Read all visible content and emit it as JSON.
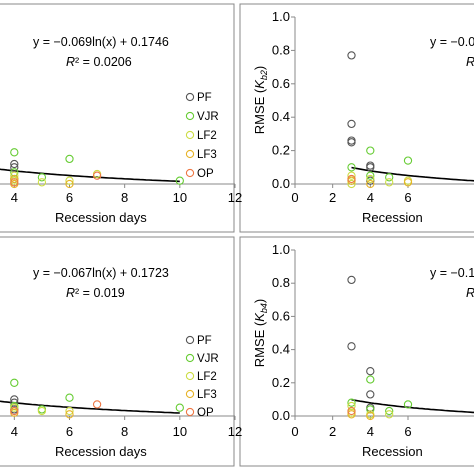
{
  "colors": {
    "PF": "#555555",
    "VJR": "#66cc33",
    "LF2": "#ccdd44",
    "LF3": "#e8b428",
    "OP": "#ee7744",
    "frame": "#888888",
    "fit": "#000000"
  },
  "chart_data": [
    {
      "type": "scatter",
      "panel": "top-left",
      "xlabel": "Recession days",
      "x_ticks": [
        "4",
        "6",
        "8",
        "10",
        "12"
      ],
      "xlim": [
        3.3,
        12
      ],
      "ylim": [
        0,
        1.0
      ],
      "equation": "y = −0.069ln(x) + 0.1746",
      "r2_prefix": "R",
      "r2_value": "² = 0.0206",
      "fit": {
        "a": -0.069,
        "b": 0.1746,
        "x_from": 3.3,
        "x_to": 10
      },
      "legend": [
        "PF",
        "VJR",
        "LF2",
        "LF3",
        "OP"
      ],
      "legend_position": "right",
      "series": [
        {
          "name": "PF",
          "points": [
            [
              4,
              0.12
            ],
            [
              4,
              0.1
            ],
            [
              4,
              0.03
            ]
          ]
        },
        {
          "name": "VJR",
          "points": [
            [
              4,
              0.19
            ],
            [
              4,
              0.07
            ],
            [
              5,
              0.04
            ],
            [
              6,
              0.15
            ],
            [
              10,
              0.02
            ]
          ]
        },
        {
          "name": "LF2",
          "points": [
            [
              4,
              0.05
            ],
            [
              4,
              0.02
            ],
            [
              5,
              0.01
            ],
            [
              6,
              0.02
            ],
            [
              7,
              0.06
            ]
          ]
        },
        {
          "name": "LF3",
          "points": [
            [
              4,
              0.03
            ],
            [
              4,
              0.0
            ],
            [
              6,
              0.0
            ]
          ]
        },
        {
          "name": "OP",
          "points": [
            [
              4,
              0.01
            ],
            [
              7,
              0.05
            ]
          ]
        }
      ]
    },
    {
      "type": "scatter",
      "panel": "top-right",
      "xlabel": "Recession",
      "y_ticks": [
        "0.0",
        "0.2",
        "0.4",
        "0.6",
        "0.8",
        "1.0"
      ],
      "x_ticks": [
        "0",
        "2",
        "4",
        "6"
      ],
      "xlim": [
        0,
        12
      ],
      "ylim": [
        0,
        1.0
      ],
      "ylabel_prefix": "RMSE (",
      "ylabel_sym": "K",
      "ylabel_sub": "b2",
      "ylabel_suffix": ")",
      "equation": "y = −0.0",
      "r2_prefix": "R",
      "fit": {
        "a": -0.069,
        "b": 0.1746,
        "x_from": 3,
        "x_to": 12
      },
      "series": [
        {
          "name": "PF",
          "points": [
            [
              3,
              0.77
            ],
            [
              3,
              0.36
            ],
            [
              3,
              0.26
            ],
            [
              3,
              0.25
            ],
            [
              4,
              0.11
            ],
            [
              4,
              0.1
            ],
            [
              4,
              0.02
            ]
          ]
        },
        {
          "name": "VJR",
          "points": [
            [
              3,
              0.1
            ],
            [
              3,
              0.02
            ],
            [
              4,
              0.2
            ],
            [
              4,
              0.05
            ],
            [
              5,
              0.04
            ],
            [
              6,
              0.14
            ]
          ]
        },
        {
          "name": "LF2",
          "points": [
            [
              3,
              0.05
            ],
            [
              3,
              0.0
            ],
            [
              4,
              0.03
            ],
            [
              5,
              0.01
            ],
            [
              6,
              0.02
            ]
          ]
        },
        {
          "name": "LF3",
          "points": [
            [
              3,
              0.02
            ],
            [
              4,
              0.0
            ],
            [
              6,
              0.01
            ]
          ]
        },
        {
          "name": "OP",
          "points": [
            [
              3,
              0.03
            ]
          ]
        }
      ]
    },
    {
      "type": "scatter",
      "panel": "bottom-left",
      "xlabel": "Recession days",
      "x_ticks": [
        "4",
        "6",
        "8",
        "10",
        "12"
      ],
      "xlim": [
        3.3,
        12
      ],
      "ylim": [
        0,
        1.0
      ],
      "equation": "y = −0.067ln(x) + 0.1723",
      "r2_prefix": "R",
      "r2_value": "² = 0.019",
      "fit": {
        "a": -0.067,
        "b": 0.1723,
        "x_from": 3.3,
        "x_to": 10
      },
      "legend": [
        "PF",
        "VJR",
        "LF2",
        "LF3",
        "OP"
      ],
      "legend_position": "right",
      "series": [
        {
          "name": "PF",
          "points": [
            [
              4,
              0.1
            ],
            [
              4,
              0.08
            ],
            [
              4,
              0.04
            ]
          ]
        },
        {
          "name": "VJR",
          "points": [
            [
              4,
              0.2
            ],
            [
              4,
              0.06
            ],
            [
              5,
              0.04
            ],
            [
              6,
              0.11
            ],
            [
              10,
              0.05
            ]
          ]
        },
        {
          "name": "LF2",
          "points": [
            [
              4,
              0.05
            ],
            [
              5,
              0.03
            ],
            [
              6,
              0.03
            ]
          ]
        },
        {
          "name": "LF3",
          "points": [
            [
              4,
              0.02
            ],
            [
              6,
              0.01
            ]
          ]
        },
        {
          "name": "OP",
          "points": [
            [
              4,
              0.03
            ],
            [
              7,
              0.07
            ]
          ]
        }
      ]
    },
    {
      "type": "scatter",
      "panel": "bottom-right",
      "xlabel": "Recession",
      "y_ticks": [
        "0.0",
        "0.2",
        "0.4",
        "0.6",
        "0.8",
        "1.0"
      ],
      "x_ticks": [
        "0",
        "2",
        "4",
        "6"
      ],
      "xlim": [
        0,
        12
      ],
      "ylim": [
        0,
        1.0
      ],
      "ylabel_prefix": "RMSE (",
      "ylabel_sym": "K",
      "ylabel_sub": "b4",
      "ylabel_suffix": ")",
      "equation": "y = −0.1",
      "r2_prefix": "R",
      "fit": {
        "a": -0.067,
        "b": 0.1723,
        "x_from": 3,
        "x_to": 12
      },
      "series": [
        {
          "name": "PF",
          "points": [
            [
              3,
              0.82
            ],
            [
              3,
              0.42
            ],
            [
              4,
              0.27
            ],
            [
              4,
              0.13
            ],
            [
              4,
              0.05
            ]
          ]
        },
        {
          "name": "VJR",
          "points": [
            [
              3,
              0.08
            ],
            [
              4,
              0.22
            ],
            [
              4,
              0.04
            ],
            [
              5,
              0.03
            ],
            [
              6,
              0.07
            ]
          ]
        },
        {
          "name": "LF2",
          "points": [
            [
              3,
              0.06
            ],
            [
              3,
              0.02
            ],
            [
              4,
              0.01
            ],
            [
              5,
              0.01
            ]
          ]
        },
        {
          "name": "LF3",
          "points": [
            [
              3,
              0.01
            ],
            [
              4,
              0.0
            ]
          ]
        },
        {
          "name": "OP",
          "points": [
            [
              3,
              0.03
            ]
          ]
        }
      ]
    }
  ]
}
